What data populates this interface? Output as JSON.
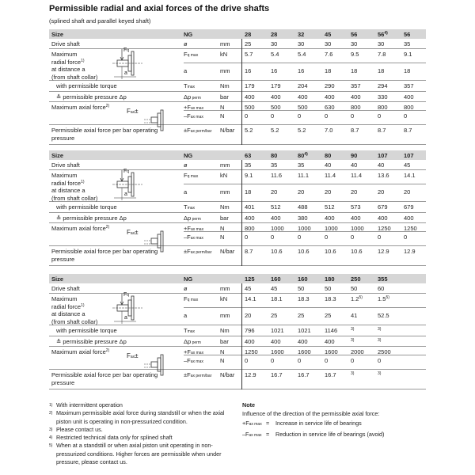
{
  "title": "Permissible radial and axial forces of the drive shafts",
  "subtitle": "(splined shaft and parallel keyed shaft)",
  "row_labels": {
    "size": "Size",
    "ng": "NG",
    "drive_shaft": "Drive shaft",
    "drive_sym": "ø",
    "drive_unit": "mm",
    "radial_l1": "Maximum",
    "radial_l2": "radial force",
    "radial_sup": "1)",
    "radial_l3": "at distance a",
    "radial_l4": "(from shaft collar)",
    "fq_main": "F",
    "fq_sub": "q max",
    "fq_unit": "kN",
    "a_sym": "a",
    "a_unit": "mm",
    "torque": "with permissible torque",
    "t_main": "T",
    "t_sub": "max",
    "t_unit": "Nm",
    "pressure": "≙ permissible pressure Δp",
    "p_main": "Δp",
    "p_sub": " perm",
    "p_unit": "bar",
    "axial": "Maximum axial force",
    "axial_sup": "2)",
    "fpos_main": "+F",
    "fpos_sub": "ax max",
    "fpos_unit": "N",
    "fneg_main": "–F",
    "fneg_sub": "ax max",
    "fneg_unit": "N",
    "perm_l1": "Permissible axial force per bar operating",
    "perm_l2": "pressure",
    "fperm_main": "±F",
    "fperm_sub": "ax perm/bar",
    "fperm_unit": "N/bar",
    "diag_fq": "F",
    "diag_fq_sub": "q",
    "diag_a": "a",
    "diag_fax": "F",
    "diag_fax_sub": "ax"
  },
  "tables": [
    {
      "size": [
        {
          "v": "28"
        },
        {
          "v": "28"
        },
        {
          "v": "32"
        },
        {
          "v": "45"
        },
        {
          "v": "56"
        },
        {
          "v": "56",
          "sup": "4)"
        },
        {
          "v": "56"
        }
      ],
      "drive": [
        "25",
        "30",
        "30",
        "30",
        "30",
        "30",
        "35"
      ],
      "fq": [
        "5.7",
        "5.4",
        "5.4",
        "7.6",
        "9.5",
        "7.8",
        "9.1"
      ],
      "a": [
        "16",
        "16",
        "16",
        "18",
        "18",
        "18",
        "18"
      ],
      "t": [
        {
          "v": "179"
        },
        {
          "v": "179"
        },
        {
          "v": "204"
        },
        {
          "v": "290"
        },
        {
          "v": "357"
        },
        {
          "v": "294"
        },
        {
          "v": "357"
        }
      ],
      "p": [
        {
          "v": "400"
        },
        {
          "v": "400"
        },
        {
          "v": "400"
        },
        {
          "v": "400"
        },
        {
          "v": "400"
        },
        {
          "v": "330"
        },
        {
          "v": "400"
        }
      ],
      "fpos": [
        "500",
        "500",
        "500",
        "630",
        "800",
        "800",
        "800"
      ],
      "fneg": [
        "0",
        "0",
        "0",
        "0",
        "0",
        "0",
        "0"
      ],
      "fperm": [
        {
          "v": "5.2"
        },
        {
          "v": "5.2"
        },
        {
          "v": "5.2"
        },
        {
          "v": "7.0"
        },
        {
          "v": "8.7"
        },
        {
          "v": "8.7"
        },
        {
          "v": "8.7"
        }
      ]
    },
    {
      "size": [
        {
          "v": "63"
        },
        {
          "v": "80"
        },
        {
          "v": "80",
          "sup": "4)"
        },
        {
          "v": "80"
        },
        {
          "v": "90"
        },
        {
          "v": "107"
        },
        {
          "v": "107"
        }
      ],
      "drive": [
        "35",
        "35",
        "35",
        "40",
        "40",
        "40",
        "45"
      ],
      "fq": [
        "9.1",
        "11.6",
        "11.1",
        "11.4",
        "11.4",
        "13.6",
        "14.1"
      ],
      "a": [
        "18",
        "20",
        "20",
        "20",
        "20",
        "20",
        "20"
      ],
      "t": [
        {
          "v": "401"
        },
        {
          "v": "512"
        },
        {
          "v": "488"
        },
        {
          "v": "512"
        },
        {
          "v": "573"
        },
        {
          "v": "679"
        },
        {
          "v": "679"
        }
      ],
      "p": [
        {
          "v": "400"
        },
        {
          "v": "400"
        },
        {
          "v": "380"
        },
        {
          "v": "400"
        },
        {
          "v": "400"
        },
        {
          "v": "400"
        },
        {
          "v": "400"
        }
      ],
      "fpos": [
        "800",
        "1000",
        "1000",
        "1000",
        "1000",
        "1250",
        "1250"
      ],
      "fneg": [
        "0",
        "0",
        "0",
        "0",
        "0",
        "0",
        "0"
      ],
      "fperm": [
        {
          "v": "8.7"
        },
        {
          "v": "10.6"
        },
        {
          "v": "10.6"
        },
        {
          "v": "10.6"
        },
        {
          "v": "10.6"
        },
        {
          "v": "12.9"
        },
        {
          "v": "12.9"
        }
      ]
    },
    {
      "size": [
        {
          "v": "125"
        },
        {
          "v": "160"
        },
        {
          "v": "160"
        },
        {
          "v": "180"
        },
        {
          "v": "250"
        },
        {
          "v": "355"
        }
      ],
      "drive": [
        "45",
        "45",
        "50",
        "50",
        "50",
        "60"
      ],
      "fq": [
        {
          "v": "14.1"
        },
        {
          "v": "18.1"
        },
        {
          "v": "18.3"
        },
        {
          "v": "18.3"
        },
        {
          "v": "1.2",
          "sup": "5)"
        },
        {
          "v": "1.5",
          "sup": "5)"
        }
      ],
      "a": [
        "20",
        "25",
        "25",
        "25",
        "41",
        "52.5"
      ],
      "t": [
        {
          "v": "796"
        },
        {
          "v": "1021"
        },
        {
          "v": "1021"
        },
        {
          "v": "1146"
        },
        {
          "v": "",
          "sup": "3)"
        },
        {
          "v": "",
          "sup": "3)"
        }
      ],
      "p": [
        {
          "v": "400"
        },
        {
          "v": "400"
        },
        {
          "v": "400"
        },
        {
          "v": "400"
        },
        {
          "v": "",
          "sup": "3)"
        },
        {
          "v": "",
          "sup": "3)"
        }
      ],
      "fpos": [
        "1250",
        "1600",
        "1600",
        "1600",
        "2000",
        "2500"
      ],
      "fneg": [
        "0",
        "0",
        "0",
        "0",
        "0",
        "0"
      ],
      "fperm": [
        {
          "v": "12.9"
        },
        {
          "v": "16.7"
        },
        {
          "v": "16.7"
        },
        {
          "v": "16.7"
        },
        {
          "v": "",
          "sup": "3)"
        },
        {
          "v": "",
          "sup": "3)"
        }
      ]
    }
  ],
  "footnotes": [
    {
      "n": "1)",
      "text": "With intermittent operation"
    },
    {
      "n": "2)",
      "text": "Maximum permissible axial force during standstill or when the axial piston unit is operating in non-pressurized condition."
    },
    {
      "n": "3)",
      "text": "Please contact us."
    },
    {
      "n": "4)",
      "text": "Restricted technical data only for splined shaft"
    },
    {
      "n": "5)",
      "text": "When at a standstill  or when axial piston unit operating in non-pressurized conditions. Higher forces are permissible when under pressure, please contact us."
    }
  ],
  "note": {
    "heading": "Note",
    "intro": "Influence of the direction of the permissible axial force:",
    "items": [
      {
        "main": "+F",
        "sub": "ax max",
        "eq": "=",
        "text": "Increase in service life of bearings"
      },
      {
        "main": "–F",
        "sub": "ax max",
        "eq": "=",
        "text": "Reduction in service life of bearings (avoid)"
      }
    ]
  }
}
